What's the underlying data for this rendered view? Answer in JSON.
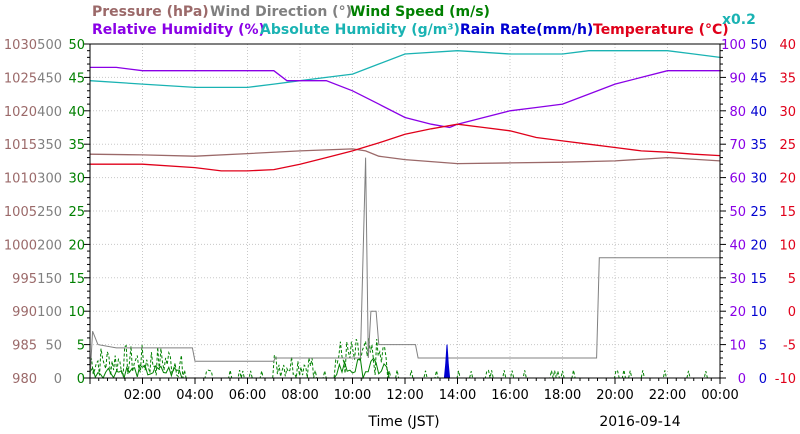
{
  "chart_data": {
    "type": "line",
    "date": "2016-09-14",
    "xlabel": "Time (JST)",
    "xlim": [
      "00:00",
      "24:00"
    ],
    "x_ticks": [
      "02:00",
      "04:00",
      "06:00",
      "08:00",
      "10:00",
      "12:00",
      "14:00",
      "16:00",
      "18:00",
      "20:00",
      "22:00",
      "00:00"
    ],
    "legend": {
      "row1": [
        {
          "key": "pressure",
          "label": "Pressure (hPa)",
          "color": "#9b6969"
        },
        {
          "key": "wind_direction",
          "label": "Wind Direction (°)",
          "color": "#808080"
        },
        {
          "key": "wind_speed",
          "label": "Wind Speed (m/s)",
          "color": "#008000"
        }
      ],
      "row2": [
        {
          "key": "relative_humidity",
          "label": "Relative Humidity (%)",
          "color": "#8a00e6"
        },
        {
          "key": "absolute_humidity",
          "label": "Absolute Humidity (g/m³)",
          "color": "#1ab3b3"
        },
        {
          "key": "rain_rate",
          "label": "Rain Rate(mm/h)",
          "color": "#0000d0"
        },
        {
          "key": "temperature",
          "label": "Temperature (°C)",
          "color": "#e0001a"
        },
        {
          "key": "abs_scale",
          "label": "x0.2",
          "color": "#1ab3b3"
        }
      ]
    },
    "axes": {
      "pressure": {
        "min": 980,
        "max": 1030,
        "ticks": [
          "1030",
          "1025",
          "1020",
          "1015",
          "1010",
          "1005",
          "1000",
          "995",
          "990",
          "985",
          "980"
        ],
        "color": "#9b6969"
      },
      "wind_direction": {
        "min": 0,
        "max": 500,
        "ticks": [
          "500",
          "450",
          "400",
          "350",
          "300",
          "250",
          "200",
          "150",
          "100",
          "50",
          "0"
        ],
        "color": "#808080"
      },
      "wind_speed": {
        "min": 0,
        "max": 50,
        "ticks": [
          "50",
          "45",
          "40",
          "35",
          "30",
          "25",
          "20",
          "15",
          "10",
          "5",
          "0"
        ],
        "color": "#008000"
      },
      "humidity": {
        "min": 0,
        "max": 100,
        "ticks": [
          "100",
          "90",
          "80",
          "70",
          "60",
          "50",
          "40",
          "30",
          "20",
          "10",
          "0"
        ],
        "color": "#8a00e6"
      },
      "rain_rate": {
        "min": 0,
        "max": 50,
        "ticks": [
          "50",
          "45",
          "40",
          "35",
          "30",
          "25",
          "20",
          "15",
          "10",
          "5",
          "0"
        ],
        "color": "#0000d0"
      },
      "temperature": {
        "min": -10,
        "max": 40,
        "ticks": [
          "40",
          "35",
          "30",
          "25",
          "20",
          "15",
          "10",
          "5",
          "0",
          "-5",
          "-10"
        ],
        "color": "#e0001a"
      }
    },
    "series": [
      {
        "name": "Temperature (°C)",
        "axis": "temperature",
        "color": "#e0001a",
        "x": [
          0,
          2,
          4,
          5,
          6,
          7,
          8,
          9,
          10,
          10.5,
          11,
          12,
          13,
          14,
          15,
          16,
          17,
          18,
          19,
          20,
          21,
          22,
          23,
          24
        ],
        "values": [
          22.0,
          22.0,
          21.5,
          21.0,
          21.0,
          21.2,
          22.0,
          23.0,
          24.0,
          24.6,
          25.2,
          26.5,
          27.3,
          28.0,
          27.5,
          27.0,
          26.0,
          25.5,
          25.0,
          24.5,
          24.0,
          23.8,
          23.5,
          23.3
        ]
      },
      {
        "name": "Pressure (hPa)",
        "axis": "pressure",
        "color": "#9b6969",
        "x": [
          0,
          2,
          4,
          6,
          8,
          10,
          10.5,
          11,
          12,
          13,
          14,
          16,
          18,
          20,
          22,
          24
        ],
        "values": [
          1013.5,
          1013.4,
          1013.2,
          1013.6,
          1014.0,
          1014.3,
          1014.0,
          1013.2,
          1012.7,
          1012.4,
          1012.1,
          1012.2,
          1012.3,
          1012.5,
          1013.0,
          1012.5
        ]
      },
      {
        "name": "Relative Humidity (%)",
        "axis": "humidity",
        "color": "#8a00e6",
        "x": [
          0,
          1,
          2,
          4,
          6,
          7,
          7.5,
          8,
          9,
          10,
          11,
          12,
          13,
          13.7,
          14,
          15,
          16,
          17,
          18,
          19,
          20,
          21,
          22,
          23,
          24
        ],
        "values": [
          93,
          93,
          92,
          92,
          92,
          92,
          89,
          89,
          89,
          86,
          82,
          78,
          76,
          75,
          76,
          78,
          80,
          81,
          82,
          85,
          88,
          90,
          92,
          92,
          92
        ]
      },
      {
        "name": "Absolute Humidity (g/m³)",
        "axis": "humidity",
        "color": "#1ab3b3",
        "x": [
          0,
          2,
          4,
          6,
          7,
          8,
          9,
          10,
          11,
          12,
          14,
          16,
          18,
          19,
          20,
          22,
          23,
          24
        ],
        "values": [
          89,
          88,
          87,
          87,
          88,
          89,
          90,
          91,
          94,
          97,
          98,
          97,
          97,
          98,
          98,
          98,
          97,
          96
        ]
      },
      {
        "name": "Wind Direction (°)",
        "axis": "wind_direction",
        "color": "#808080",
        "x": [
          0,
          0.1,
          0.3,
          1,
          2,
          3,
          3.9,
          4,
          6,
          7,
          7.05,
          8,
          9,
          10,
          10.3,
          10.5,
          10.6,
          10.7,
          10.9,
          11,
          11.5,
          12,
          12.4,
          12.5,
          13,
          14,
          16,
          18,
          19.3,
          19.4,
          20,
          22,
          24
        ],
        "values": [
          0,
          70,
          50,
          45,
          45,
          45,
          45,
          25,
          25,
          25,
          30,
          30,
          30,
          30,
          30,
          330,
          30,
          100,
          100,
          50,
          50,
          50,
          50,
          30,
          30,
          30,
          30,
          30,
          30,
          180,
          180,
          180,
          180
        ]
      },
      {
        "name": "Rain Rate(mm/h)",
        "axis": "rain_rate",
        "color": "#0000d0",
        "x": [
          0,
          13.5,
          13.55,
          13.6,
          13.65,
          13.7,
          24
        ],
        "values": [
          0,
          0,
          2,
          5,
          2,
          0,
          0
        ]
      }
    ]
  }
}
